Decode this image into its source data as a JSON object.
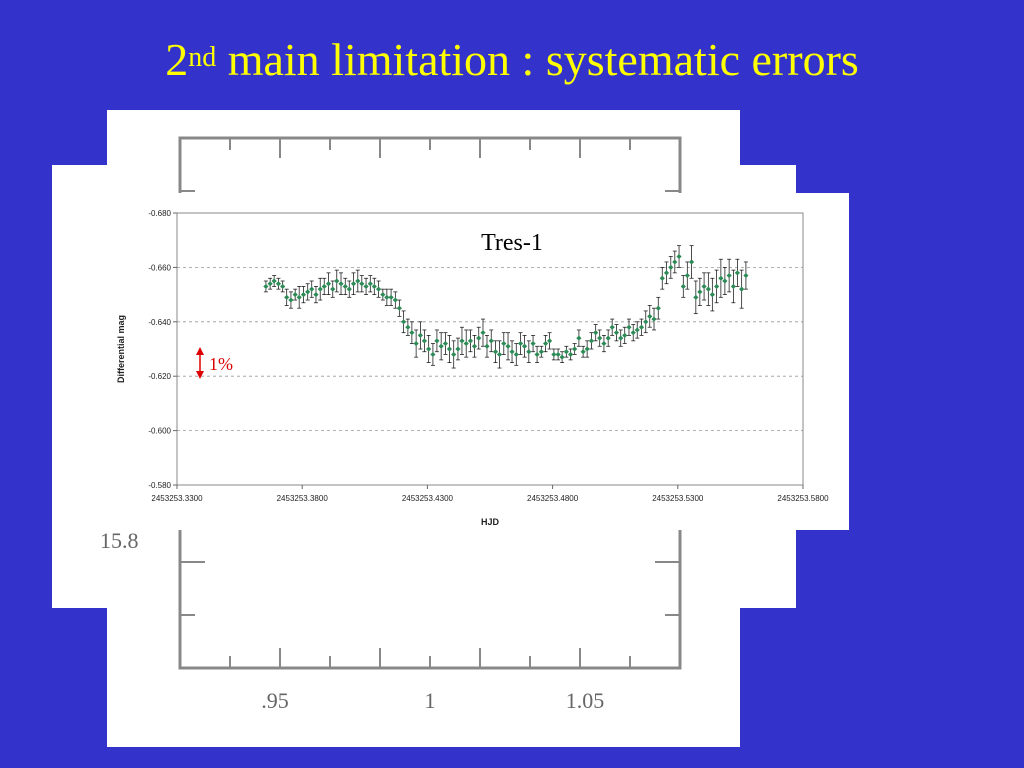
{
  "slide": {
    "title_main": "2",
    "title_sup": "nd",
    "title_rest": " main limitation : systematic errors",
    "title_color": "#ffff00",
    "background_color": "#3333cc"
  },
  "background_plot": {
    "x_ticks": [
      ".95",
      "1",
      "1.05"
    ],
    "y_label_visible": "15.8"
  },
  "chart_data": {
    "type": "scatter",
    "annotation_title": "Tres-1",
    "xlabel": "HJD",
    "ylabel": "Differential mag",
    "xlim": [
      2453253.33,
      2453253.58
    ],
    "ylim": [
      -0.68,
      -0.58
    ],
    "y_reversed": true,
    "x_tick_labels": [
      "2453253.3300",
      "2453253.3800",
      "2453253.4300",
      "2453253.4800",
      "2453253.5300",
      "2453253.5800"
    ],
    "y_tick_labels": [
      "-0.680",
      "-0.660",
      "-0.640",
      "-0.620",
      "-0.600",
      "-0.580"
    ],
    "grid": "horizontal dashed",
    "marker_color": "#2e8b57",
    "scale_annotation": "1%",
    "scale_annotation_color": "#dd0000",
    "series": [
      {
        "x": [
          2453253.3655,
          2453253.3672,
          2453253.3688,
          2453253.3705,
          2453253.3722,
          2453253.3738,
          2453253.3755,
          2453253.3772,
          2453253.3788,
          2453253.3805,
          2453253.3822,
          2453253.3838,
          2453253.3855,
          2453253.3872,
          2453253.3888,
          2453253.3905,
          2453253.3922,
          2453253.3938,
          2453253.3955,
          2453253.3972,
          2453253.3988,
          2453253.4005,
          2453253.4022,
          2453253.4038,
          2453253.4055,
          2453253.4072,
          2453253.4088,
          2453253.4105,
          2453253.4122,
          2453253.4138,
          2453253.4155,
          2453253.4172,
          2453253.4188,
          2453253.4205,
          2453253.4222,
          2453253.4238,
          2453253.4255,
          2453253.4272,
          2453253.4288,
          2453253.4305,
          2453253.4322,
          2453253.4338,
          2453253.4355,
          2453253.4372,
          2453253.4388,
          2453253.4405,
          2453253.4422,
          2453253.4438,
          2453253.4455,
          2453253.4472,
          2453253.4488,
          2453253.4505,
          2453253.4522,
          2453253.4538,
          2453253.4555,
          2453253.4572,
          2453253.4588,
          2453253.4605,
          2453253.4622,
          2453253.4638,
          2453253.4655,
          2453253.4672,
          2453253.4688,
          2453253.4705,
          2453253.4722,
          2453253.4738,
          2453253.4755,
          2453253.4772,
          2453253.4788,
          2453253.4805,
          2453253.4822,
          2453253.4838,
          2453253.4855,
          2453253.4872,
          2453253.4888,
          2453253.4905,
          2453253.4922,
          2453253.4938,
          2453253.4955,
          2453253.4972,
          2453253.4988,
          2453253.5005,
          2453253.5022,
          2453253.5038,
          2453253.5055,
          2453253.5072,
          2453253.5088,
          2453253.5105,
          2453253.5122,
          2453253.5138,
          2453253.5155,
          2453253.5172,
          2453253.5188,
          2453253.5205,
          2453253.5222,
          2453253.5238,
          2453253.5255,
          2453253.5272,
          2453253.5288,
          2453253.5305,
          2453253.5322,
          2453253.5338,
          2453253.5355,
          2453253.5372,
          2453253.5388,
          2453253.5405,
          2453253.5422,
          2453253.5438,
          2453253.5455,
          2453253.5472,
          2453253.5488,
          2453253.5505,
          2453253.5522,
          2453253.5538,
          2453253.5555,
          2453253.5572
        ],
        "y": [
          -0.653,
          -0.654,
          -0.655,
          -0.654,
          -0.653,
          -0.649,
          -0.648,
          -0.65,
          -0.649,
          -0.65,
          -0.651,
          -0.652,
          -0.65,
          -0.652,
          -0.653,
          -0.654,
          -0.652,
          -0.655,
          -0.654,
          -0.653,
          -0.652,
          -0.654,
          -0.655,
          -0.654,
          -0.653,
          -0.654,
          -0.653,
          -0.652,
          -0.65,
          -0.649,
          -0.649,
          -0.648,
          -0.645,
          -0.64,
          -0.638,
          -0.636,
          -0.632,
          -0.635,
          -0.633,
          -0.63,
          -0.628,
          -0.633,
          -0.631,
          -0.632,
          -0.63,
          -0.628,
          -0.63,
          -0.633,
          -0.632,
          -0.633,
          -0.631,
          -0.634,
          -0.636,
          -0.631,
          -0.633,
          -0.629,
          -0.628,
          -0.632,
          -0.631,
          -0.629,
          -0.628,
          -0.632,
          -0.631,
          -0.629,
          -0.632,
          -0.628,
          -0.629,
          -0.632,
          -0.633,
          -0.628,
          -0.628,
          -0.627,
          -0.629,
          -0.628,
          -0.63,
          -0.634,
          -0.629,
          -0.63,
          -0.633,
          -0.636,
          -0.634,
          -0.632,
          -0.634,
          -0.638,
          -0.636,
          -0.634,
          -0.635,
          -0.638,
          -0.636,
          -0.637,
          -0.638,
          -0.64,
          -0.642,
          -0.641,
          -0.645,
          -0.656,
          -0.658,
          -0.66,
          -0.662,
          -0.664,
          -0.653,
          -0.657,
          -0.662,
          -0.649,
          -0.651,
          -0.653,
          -0.652,
          -0.65,
          -0.653,
          -0.656,
          -0.655,
          -0.657,
          -0.653,
          -0.658,
          -0.652,
          -0.657
        ],
        "err": [
          0.002,
          0.002,
          0.002,
          0.002,
          0.002,
          0.003,
          0.003,
          0.002,
          0.004,
          0.003,
          0.003,
          0.003,
          0.003,
          0.004,
          0.003,
          0.004,
          0.003,
          0.004,
          0.004,
          0.003,
          0.003,
          0.004,
          0.004,
          0.003,
          0.003,
          0.003,
          0.003,
          0.003,
          0.002,
          0.003,
          0.003,
          0.003,
          0.003,
          0.004,
          0.003,
          0.004,
          0.005,
          0.005,
          0.004,
          0.005,
          0.004,
          0.004,
          0.005,
          0.004,
          0.005,
          0.005,
          0.004,
          0.005,
          0.005,
          0.004,
          0.004,
          0.004,
          0.005,
          0.004,
          0.004,
          0.004,
          0.005,
          0.004,
          0.005,
          0.004,
          0.004,
          0.004,
          0.004,
          0.004,
          0.003,
          0.003,
          0.002,
          0.003,
          0.003,
          0.002,
          0.002,
          0.002,
          0.002,
          0.002,
          0.002,
          0.003,
          0.002,
          0.003,
          0.003,
          0.003,
          0.003,
          0.003,
          0.003,
          0.003,
          0.003,
          0.003,
          0.003,
          0.003,
          0.003,
          0.003,
          0.003,
          0.004,
          0.004,
          0.004,
          0.004,
          0.004,
          0.004,
          0.004,
          0.004,
          0.004,
          0.004,
          0.005,
          0.006,
          0.006,
          0.005,
          0.005,
          0.006,
          0.006,
          0.006,
          0.007,
          0.005,
          0.006,
          0.006,
          0.005,
          0.007,
          0.005
        ]
      }
    ]
  }
}
